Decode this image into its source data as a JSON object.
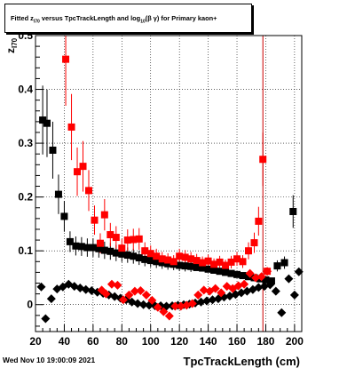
{
  "title": {
    "prefix": "Fitted  z",
    "sub1": "I70",
    "mid": "  versus  TpcTrackLength and log",
    "sub2": "10",
    "suffix": "(β  γ) for Primary kaon+"
  },
  "timestamp": "Wed Nov 10 19:00:09 2021",
  "chart_data": {
    "type": "scatter",
    "title": "Fitted z_I70 versus TpcTrackLength and log10(β γ) for Primary kaon+",
    "xlabel": "TpcTrackLength (cm)",
    "ylabel": "z_I70",
    "xlim": [
      20,
      205
    ],
    "ylim": [
      -0.05,
      0.5
    ],
    "xticks": [
      20,
      40,
      60,
      80,
      100,
      120,
      140,
      160,
      180,
      200
    ],
    "xtick_labels": [
      "20",
      "40",
      "60",
      "80",
      "100",
      "120",
      "140",
      "160",
      "180",
      "200"
    ],
    "yticks": [
      0,
      0.1,
      0.2,
      0.3,
      0.4,
      0.5
    ],
    "ytick_labels": [
      "0",
      "0.1",
      "0.2",
      "0.3",
      "0.4",
      "0.5"
    ],
    "grid": true,
    "vline_x": 178,
    "vline_color": "#cc0000",
    "series": [
      {
        "marker": "square",
        "color": "#000000",
        "points": [
          {
            "x": 25,
            "y": 0.343
          },
          {
            "x": 28,
            "y": 0.337
          },
          {
            "x": 32,
            "y": 0.287
          },
          {
            "x": 36,
            "y": 0.205
          },
          {
            "x": 40,
            "y": 0.164
          },
          {
            "x": 44,
            "y": 0.117
          },
          {
            "x": 48,
            "y": 0.109
          },
          {
            "x": 52,
            "y": 0.108
          },
          {
            "x": 56,
            "y": 0.106
          },
          {
            "x": 60,
            "y": 0.106
          },
          {
            "x": 64,
            "y": 0.104
          },
          {
            "x": 68,
            "y": 0.101
          },
          {
            "x": 72,
            "y": 0.099
          },
          {
            "x": 76,
            "y": 0.096
          },
          {
            "x": 80,
            "y": 0.094
          },
          {
            "x": 84,
            "y": 0.092
          },
          {
            "x": 88,
            "y": 0.09
          },
          {
            "x": 92,
            "y": 0.087
          },
          {
            "x": 96,
            "y": 0.084
          },
          {
            "x": 100,
            "y": 0.082
          },
          {
            "x": 104,
            "y": 0.08
          },
          {
            "x": 108,
            "y": 0.078
          },
          {
            "x": 112,
            "y": 0.076
          },
          {
            "x": 116,
            "y": 0.075
          },
          {
            "x": 120,
            "y": 0.073
          },
          {
            "x": 124,
            "y": 0.072
          },
          {
            "x": 128,
            "y": 0.071
          },
          {
            "x": 132,
            "y": 0.069
          },
          {
            "x": 136,
            "y": 0.068
          },
          {
            "x": 140,
            "y": 0.066
          },
          {
            "x": 144,
            "y": 0.064
          },
          {
            "x": 148,
            "y": 0.062
          },
          {
            "x": 152,
            "y": 0.06
          },
          {
            "x": 156,
            "y": 0.058
          },
          {
            "x": 160,
            "y": 0.056
          },
          {
            "x": 164,
            "y": 0.054
          },
          {
            "x": 168,
            "y": 0.052
          },
          {
            "x": 172,
            "y": 0.05
          },
          {
            "x": 176,
            "y": 0.048
          },
          {
            "x": 180,
            "y": 0.046
          },
          {
            "x": 184,
            "y": 0.044
          },
          {
            "x": 188,
            "y": 0.072
          },
          {
            "x": 193,
            "y": 0.078
          },
          {
            "x": 199,
            "y": 0.173
          }
        ]
      },
      {
        "marker": "square",
        "color": "#ff0000",
        "points": [
          {
            "x": 41,
            "y": 0.456
          },
          {
            "x": 45,
            "y": 0.33
          },
          {
            "x": 49,
            "y": 0.247
          },
          {
            "x": 53,
            "y": 0.257
          },
          {
            "x": 57,
            "y": 0.212
          },
          {
            "x": 61,
            "y": 0.157
          },
          {
            "x": 65,
            "y": 0.114
          },
          {
            "x": 68,
            "y": 0.167
          },
          {
            "x": 72,
            "y": 0.13
          },
          {
            "x": 76,
            "y": 0.125
          },
          {
            "x": 80,
            "y": 0.105
          },
          {
            "x": 84,
            "y": 0.12
          },
          {
            "x": 88,
            "y": 0.121
          },
          {
            "x": 92,
            "y": 0.122
          },
          {
            "x": 96,
            "y": 0.1
          },
          {
            "x": 100,
            "y": 0.095
          },
          {
            "x": 104,
            "y": 0.09
          },
          {
            "x": 108,
            "y": 0.085
          },
          {
            "x": 112,
            "y": 0.083
          },
          {
            "x": 116,
            "y": 0.08
          },
          {
            "x": 120,
            "y": 0.09
          },
          {
            "x": 124,
            "y": 0.088
          },
          {
            "x": 128,
            "y": 0.085
          },
          {
            "x": 132,
            "y": 0.082
          },
          {
            "x": 136,
            "y": 0.078
          },
          {
            "x": 140,
            "y": 0.081
          },
          {
            "x": 144,
            "y": 0.075
          },
          {
            "x": 148,
            "y": 0.079
          },
          {
            "x": 152,
            "y": 0.073
          },
          {
            "x": 156,
            "y": 0.079
          },
          {
            "x": 160,
            "y": 0.085
          },
          {
            "x": 164,
            "y": 0.08
          },
          {
            "x": 168,
            "y": 0.1
          },
          {
            "x": 172,
            "y": 0.115
          },
          {
            "x": 175,
            "y": 0.155
          },
          {
            "x": 178,
            "y": 0.27
          },
          {
            "x": 181,
            "y": 0.062
          }
        ]
      },
      {
        "marker": "diamond",
        "color": "#000000",
        "points": [
          {
            "x": 24,
            "y": 0.033
          },
          {
            "x": 27,
            "y": -0.026
          },
          {
            "x": 31,
            "y": 0.011
          },
          {
            "x": 35,
            "y": 0.029
          },
          {
            "x": 39,
            "y": 0.033
          },
          {
            "x": 43,
            "y": 0.038
          },
          {
            "x": 47,
            "y": 0.034
          },
          {
            "x": 51,
            "y": 0.031
          },
          {
            "x": 55,
            "y": 0.028
          },
          {
            "x": 59,
            "y": 0.026
          },
          {
            "x": 63,
            "y": 0.023
          },
          {
            "x": 67,
            "y": 0.021
          },
          {
            "x": 71,
            "y": 0.018
          },
          {
            "x": 75,
            "y": 0.015
          },
          {
            "x": 79,
            "y": 0.012
          },
          {
            "x": 83,
            "y": 0.009
          },
          {
            "x": 87,
            "y": 0.005
          },
          {
            "x": 91,
            "y": 0.002
          },
          {
            "x": 95,
            "y": 0.0
          },
          {
            "x": 99,
            "y": -0.001
          },
          {
            "x": 103,
            "y": -0.002
          },
          {
            "x": 107,
            "y": -0.002
          },
          {
            "x": 111,
            "y": -0.003
          },
          {
            "x": 115,
            "y": -0.002
          },
          {
            "x": 119,
            "y": -0.001
          },
          {
            "x": 123,
            "y": 0.0
          },
          {
            "x": 127,
            "y": 0.001
          },
          {
            "x": 131,
            "y": 0.003
          },
          {
            "x": 135,
            "y": 0.005
          },
          {
            "x": 139,
            "y": 0.007
          },
          {
            "x": 143,
            "y": 0.009
          },
          {
            "x": 147,
            "y": 0.011
          },
          {
            "x": 151,
            "y": 0.014
          },
          {
            "x": 155,
            "y": 0.016
          },
          {
            "x": 159,
            "y": 0.019
          },
          {
            "x": 163,
            "y": 0.022
          },
          {
            "x": 167,
            "y": 0.025
          },
          {
            "x": 171,
            "y": 0.028
          },
          {
            "x": 175,
            "y": 0.032
          },
          {
            "x": 179,
            "y": 0.034
          },
          {
            "x": 183,
            "y": 0.037
          },
          {
            "x": 187,
            "y": 0.025
          },
          {
            "x": 191,
            "y": -0.015
          },
          {
            "x": 196,
            "y": 0.048
          },
          {
            "x": 200,
            "y": 0.018
          },
          {
            "x": 203,
            "y": 0.061
          }
        ]
      },
      {
        "marker": "diamond",
        "color": "#ff0000",
        "points": [
          {
            "x": 66,
            "y": 0.027
          },
          {
            "x": 69,
            "y": 0.02
          },
          {
            "x": 73,
            "y": 0.038
          },
          {
            "x": 77,
            "y": 0.036
          },
          {
            "x": 81,
            "y": 0.009
          },
          {
            "x": 85,
            "y": 0.018
          },
          {
            "x": 89,
            "y": 0.025
          },
          {
            "x": 93,
            "y": 0.026
          },
          {
            "x": 97,
            "y": 0.018
          },
          {
            "x": 101,
            "y": 0.008
          },
          {
            "x": 105,
            "y": -0.005
          },
          {
            "x": 109,
            "y": -0.013
          },
          {
            "x": 113,
            "y": -0.021
          },
          {
            "x": 117,
            "y": -0.003
          },
          {
            "x": 121,
            "y": -0.003
          },
          {
            "x": 125,
            "y": -0.001
          },
          {
            "x": 129,
            "y": 0.002
          },
          {
            "x": 133,
            "y": 0.018
          },
          {
            "x": 137,
            "y": 0.027
          },
          {
            "x": 141,
            "y": 0.025
          },
          {
            "x": 145,
            "y": 0.03
          },
          {
            "x": 149,
            "y": 0.022
          },
          {
            "x": 153,
            "y": 0.034
          },
          {
            "x": 157,
            "y": 0.03
          },
          {
            "x": 161,
            "y": 0.035
          },
          {
            "x": 165,
            "y": 0.038
          },
          {
            "x": 169,
            "y": 0.058
          },
          {
            "x": 173,
            "y": 0.05
          },
          {
            "x": 177,
            "y": 0.052
          },
          {
            "x": 181,
            "y": 0.062
          }
        ]
      }
    ]
  }
}
